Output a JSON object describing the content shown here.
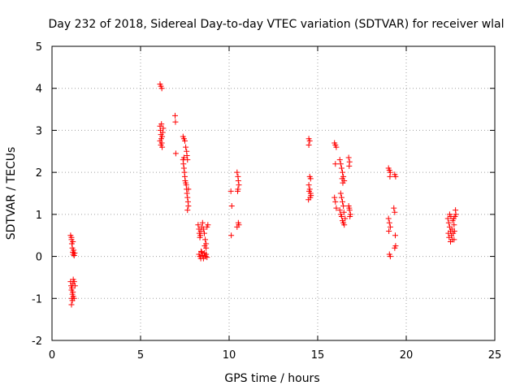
{
  "chart_data": {
    "type": "scatter",
    "title": "Day 232 of 2018, Sidereal Day-to-day VTEC variation (SDTVAR) for receiver wlal",
    "xlabel": "GPS time / hours",
    "ylabel": "SDTVAR / TECUs",
    "xlim": [
      0,
      25
    ],
    "ylim": [
      -2,
      5
    ],
    "xticks": [
      0,
      5,
      10,
      15,
      20,
      25
    ],
    "yticks": [
      -2,
      -1,
      0,
      1,
      2,
      3,
      4,
      5
    ],
    "x_tick_labels": [
      "0",
      "5",
      "10",
      "15",
      "20",
      "25"
    ],
    "y_tick_labels": [
      "-2",
      "-1",
      "0",
      "1",
      "2",
      "3",
      "4",
      "5"
    ],
    "grid": true,
    "marker": "plus",
    "color": "#ff0000",
    "series": [
      {
        "name": "SDTVAR",
        "points": [
          [
            1.05,
            0.5
          ],
          [
            1.1,
            0.4
          ],
          [
            1.12,
            0.3
          ],
          [
            1.15,
            0.2
          ],
          [
            1.17,
            0.1
          ],
          [
            1.2,
            0.05
          ],
          [
            1.22,
            0.15
          ],
          [
            1.25,
            0.02
          ],
          [
            1.28,
            0.08
          ],
          [
            1.1,
            0.45
          ],
          [
            1.18,
            0.35
          ],
          [
            1.05,
            -0.6
          ],
          [
            1.08,
            -0.7
          ],
          [
            1.1,
            -0.8
          ],
          [
            1.13,
            -0.75
          ],
          [
            1.15,
            -0.9
          ],
          [
            1.18,
            -0.65
          ],
          [
            1.2,
            -0.55
          ],
          [
            1.25,
            -0.6
          ],
          [
            1.3,
            -0.7
          ],
          [
            1.12,
            -1.0
          ],
          [
            1.15,
            -1.05
          ],
          [
            1.1,
            -1.15
          ],
          [
            1.2,
            -0.95
          ],
          [
            1.25,
            -1.0
          ],
          [
            1.18,
            -0.85
          ],
          [
            6.1,
            4.1
          ],
          [
            6.15,
            4.05
          ],
          [
            6.2,
            4.0
          ],
          [
            6.1,
            3.1
          ],
          [
            6.12,
            3.0
          ],
          [
            6.15,
            2.9
          ],
          [
            6.17,
            2.8
          ],
          [
            6.2,
            2.7
          ],
          [
            6.22,
            2.85
          ],
          [
            6.25,
            2.95
          ],
          [
            6.1,
            2.75
          ],
          [
            6.18,
            3.15
          ],
          [
            6.28,
            3.05
          ],
          [
            6.15,
            2.65
          ],
          [
            6.22,
            2.6
          ],
          [
            6.95,
            3.35
          ],
          [
            6.97,
            3.2
          ],
          [
            6.99,
            2.45
          ],
          [
            7.4,
            2.85
          ],
          [
            7.45,
            2.8
          ],
          [
            7.5,
            2.75
          ],
          [
            7.55,
            2.6
          ],
          [
            7.6,
            2.5
          ],
          [
            7.62,
            2.4
          ],
          [
            7.65,
            2.3
          ],
          [
            7.4,
            2.3
          ],
          [
            7.42,
            2.2
          ],
          [
            7.45,
            2.1
          ],
          [
            7.48,
            2.0
          ],
          [
            7.5,
            1.9
          ],
          [
            7.52,
            1.8
          ],
          [
            7.55,
            1.75
          ],
          [
            7.58,
            1.7
          ],
          [
            7.6,
            1.6
          ],
          [
            7.62,
            1.5
          ],
          [
            7.65,
            1.4
          ],
          [
            7.68,
            1.3
          ],
          [
            7.7,
            1.2
          ],
          [
            7.65,
            1.1
          ],
          [
            7.7,
            1.6
          ],
          [
            7.45,
            2.35
          ],
          [
            8.25,
            0.75
          ],
          [
            8.3,
            0.65
          ],
          [
            8.32,
            0.55
          ],
          [
            8.35,
            0.45
          ],
          [
            8.38,
            0.5
          ],
          [
            8.4,
            0.6
          ],
          [
            8.45,
            0.7
          ],
          [
            8.5,
            0.8
          ],
          [
            8.55,
            0.65
          ],
          [
            8.6,
            0.55
          ],
          [
            8.65,
            0.4
          ],
          [
            8.7,
            0.3
          ],
          [
            8.75,
            0.7
          ],
          [
            8.8,
            0.75
          ],
          [
            8.62,
            0.25
          ],
          [
            8.7,
            0.2
          ],
          [
            8.3,
            0.05
          ],
          [
            8.35,
            0.0
          ],
          [
            8.4,
            -0.05
          ],
          [
            8.45,
            0.1
          ],
          [
            8.5,
            0.02
          ],
          [
            8.55,
            -0.05
          ],
          [
            8.6,
            0.08
          ],
          [
            8.65,
            0.0
          ],
          [
            8.7,
            0.05
          ],
          [
            8.75,
            -0.02
          ],
          [
            8.42,
            0.12
          ],
          [
            10.1,
            1.55
          ],
          [
            10.15,
            1.2
          ],
          [
            10.12,
            0.5
          ],
          [
            10.45,
            2.0
          ],
          [
            10.5,
            1.9
          ],
          [
            10.52,
            1.8
          ],
          [
            10.55,
            1.7
          ],
          [
            10.5,
            1.6
          ],
          [
            10.48,
            1.55
          ],
          [
            10.45,
            0.7
          ],
          [
            10.52,
            0.8
          ],
          [
            10.55,
            0.75
          ],
          [
            14.5,
            2.8
          ],
          [
            14.55,
            2.75
          ],
          [
            14.5,
            2.65
          ],
          [
            14.55,
            1.9
          ],
          [
            14.6,
            1.85
          ],
          [
            14.5,
            1.7
          ],
          [
            14.55,
            1.6
          ],
          [
            14.6,
            1.5
          ],
          [
            14.62,
            1.45
          ],
          [
            14.58,
            1.4
          ],
          [
            14.52,
            1.55
          ],
          [
            14.48,
            1.35
          ],
          [
            15.95,
            2.7
          ],
          [
            16.0,
            2.65
          ],
          [
            16.05,
            2.6
          ],
          [
            16.0,
            2.2
          ],
          [
            15.95,
            1.4
          ],
          [
            16.0,
            1.3
          ],
          [
            16.05,
            1.15
          ],
          [
            16.25,
            2.3
          ],
          [
            16.3,
            2.2
          ],
          [
            16.35,
            2.1
          ],
          [
            16.4,
            2.0
          ],
          [
            16.45,
            1.9
          ],
          [
            16.5,
            1.8
          ],
          [
            16.38,
            1.85
          ],
          [
            16.42,
            1.75
          ],
          [
            16.3,
            1.5
          ],
          [
            16.35,
            1.4
          ],
          [
            16.4,
            1.3
          ],
          [
            16.45,
            1.2
          ],
          [
            16.25,
            1.1
          ],
          [
            16.3,
            1.0
          ],
          [
            16.35,
            0.95
          ],
          [
            16.4,
            0.85
          ],
          [
            16.45,
            0.8
          ],
          [
            16.5,
            0.75
          ],
          [
            16.55,
            0.9
          ],
          [
            16.48,
            1.05
          ],
          [
            16.75,
            2.35
          ],
          [
            16.8,
            2.25
          ],
          [
            16.78,
            2.15
          ],
          [
            16.75,
            1.2
          ],
          [
            16.8,
            1.1
          ],
          [
            16.85,
            1.0
          ],
          [
            16.82,
            0.95
          ],
          [
            16.78,
            1.15
          ],
          [
            19.0,
            2.1
          ],
          [
            19.05,
            2.05
          ],
          [
            19.1,
            2.0
          ],
          [
            19.08,
            1.9
          ],
          [
            19.0,
            0.9
          ],
          [
            19.05,
            0.8
          ],
          [
            19.1,
            0.7
          ],
          [
            19.02,
            0.6
          ],
          [
            19.05,
            0.05
          ],
          [
            19.1,
            0.0
          ],
          [
            19.35,
            1.95
          ],
          [
            19.4,
            1.9
          ],
          [
            19.3,
            1.15
          ],
          [
            19.35,
            1.05
          ],
          [
            19.38,
            0.5
          ],
          [
            19.4,
            0.25
          ],
          [
            19.35,
            0.2
          ],
          [
            22.35,
            0.9
          ],
          [
            22.4,
            0.8
          ],
          [
            22.45,
            0.7
          ],
          [
            22.5,
            0.6
          ],
          [
            22.55,
            0.5
          ],
          [
            22.6,
            0.4
          ],
          [
            22.65,
            0.55
          ],
          [
            22.7,
            0.75
          ],
          [
            22.75,
            0.95
          ],
          [
            22.8,
            1.0
          ],
          [
            22.78,
            1.1
          ],
          [
            22.5,
            0.35
          ],
          [
            22.42,
            0.45
          ],
          [
            22.58,
            0.65
          ],
          [
            22.62,
            0.85
          ],
          [
            22.68,
            0.9
          ],
          [
            22.72,
            0.6
          ],
          [
            22.45,
            1.0
          ],
          [
            22.52,
            0.95
          ],
          [
            22.38,
            0.55
          ],
          [
            22.7,
            0.4
          ]
        ]
      }
    ]
  }
}
